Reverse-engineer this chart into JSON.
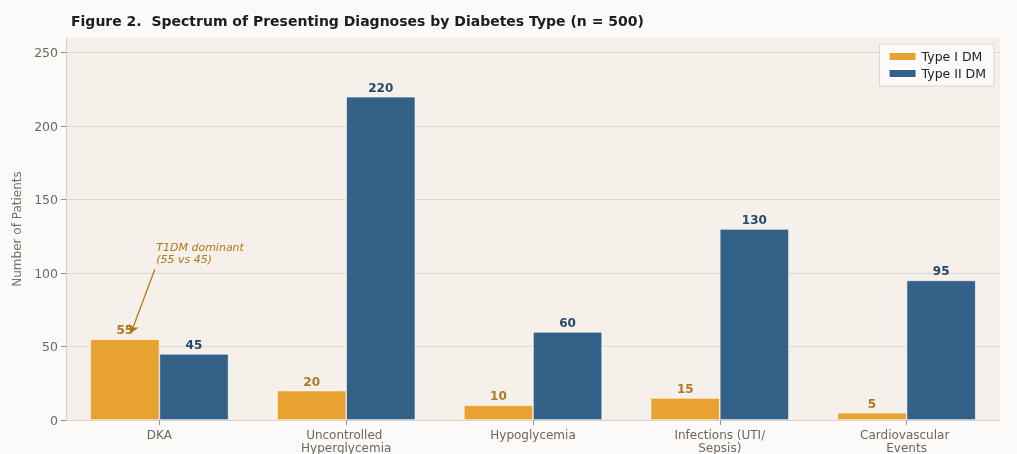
{
  "chart_data": {
    "type": "bar",
    "title": "Figure 2.  Spectrum of Presenting Diagnoses by Diabetes Type (n = 500)",
    "ylabel": "Number of Patients",
    "categories": [
      "DKA",
      "Uncontrolled Hyperglycemia",
      "Hypoglycemia",
      "Infections (UTI/Sepsis)",
      "Cardiovascular Events"
    ],
    "series": [
      {
        "name": "Type I DM",
        "color": "#e8a22f",
        "values": [
          55,
          20,
          10,
          15,
          5
        ]
      },
      {
        "name": "Type II DM",
        "color": "#336187",
        "values": [
          45,
          220,
          60,
          130,
          95
        ]
      }
    ],
    "ylim": [
      0,
      260
    ],
    "yticks": [
      0,
      50,
      100,
      150,
      200,
      250
    ],
    "grid": "y",
    "legend": "top right",
    "data_labels": true,
    "annotations": [
      "T1DM dominant\n(55 vs 45)"
    ]
  }
}
